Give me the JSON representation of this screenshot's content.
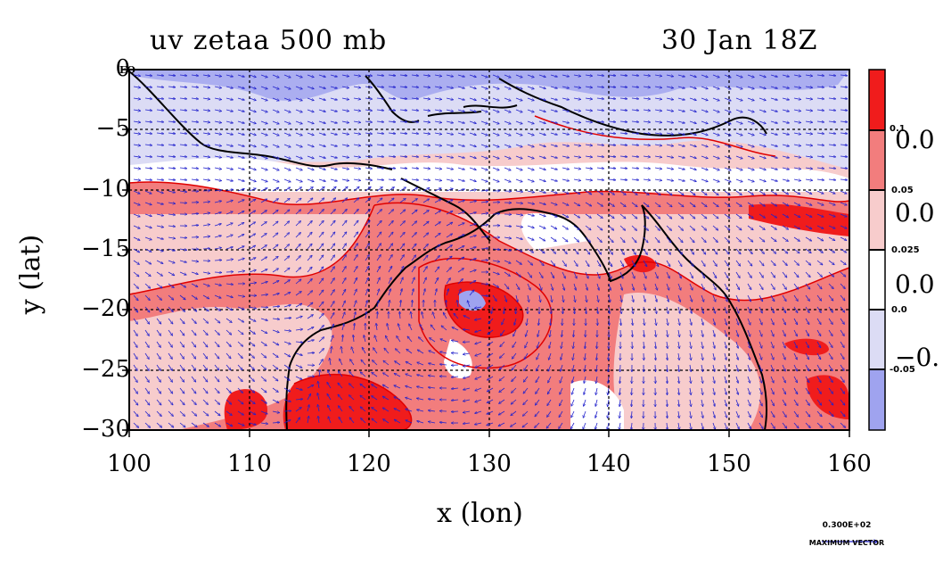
{
  "header": {
    "title_left": "uv zetaa 500 mb",
    "title_right": "30 Jan 18Z"
  },
  "axes": {
    "x_label": "x (lon)",
    "y_label": "y (lat)",
    "x_ticks": [
      "100",
      "110",
      "120",
      "130",
      "140",
      "150",
      "160"
    ],
    "y_ticks": [
      "0",
      "−5",
      "−10",
      "−15",
      "−20",
      "−25",
      "−30"
    ],
    "eq_tag": "EQ"
  },
  "map": {
    "lon_range": [
      100,
      160
    ],
    "lat_range": [
      -30,
      0
    ]
  },
  "colorbar": {
    "small_labels": [
      "0.1",
      "0.05",
      "0.025",
      "0.0",
      "-0.05"
    ],
    "big_labels": [
      "0.0",
      "0.0",
      "0.0",
      "−0."
    ],
    "colors": [
      "#f01c1c",
      "#f27d7d",
      "#f7cccc",
      "#ffffff",
      "#dcdcf5",
      "#9fa3ef"
    ]
  },
  "vector_legend": {
    "value": "0.300E+02",
    "caption": "MAXIMUM VECTOR"
  },
  "colors": {
    "vector": "#2222cc",
    "coast": "#000000",
    "contour": "#e00000"
  }
}
